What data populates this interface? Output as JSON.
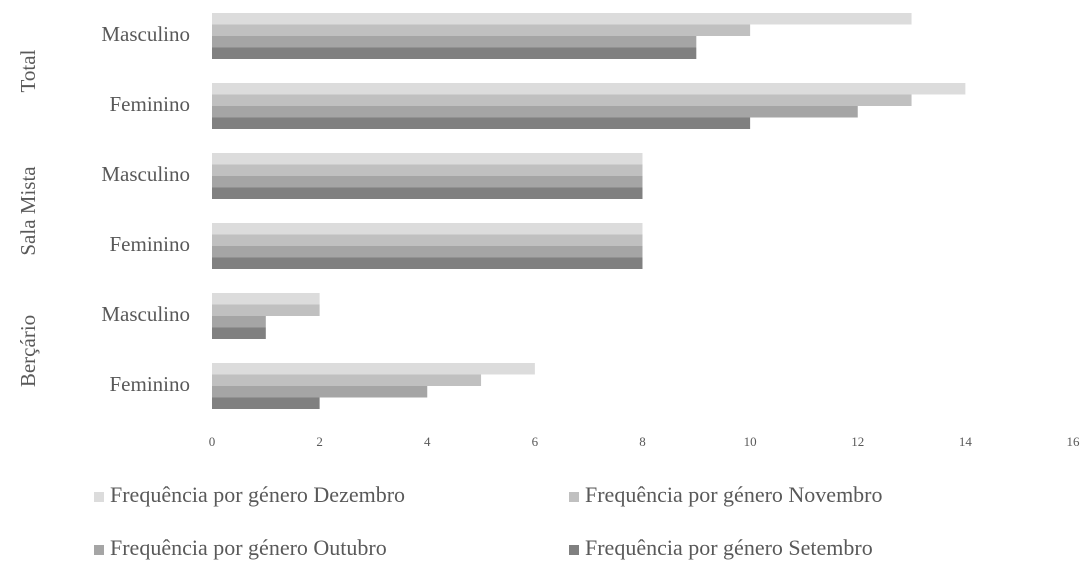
{
  "chart_data": {
    "type": "bar",
    "orientation": "horizontal",
    "groups": [
      {
        "label": "Total",
        "categories": [
          "Masculino",
          "Feminino"
        ]
      },
      {
        "label": "Sala Mista",
        "categories": [
          "Masculino",
          "Feminino"
        ]
      },
      {
        "label": "Berçário",
        "categories": [
          "Masculino",
          "Feminino"
        ]
      }
    ],
    "series": [
      {
        "name": "Frequência por género Dezembro",
        "color": "#dcdcdc",
        "values": [
          13,
          14,
          8,
          8,
          2,
          6
        ]
      },
      {
        "name": "Frequência por género Novembro",
        "color": "#c0c0c0",
        "values": [
          10,
          13,
          8,
          8,
          2,
          5
        ]
      },
      {
        "name": "Frequência por género Outubro",
        "color": "#a5a5a5",
        "values": [
          9,
          12,
          8,
          8,
          1,
          4
        ]
      },
      {
        "name": "Frequência por género Setembro",
        "color": "#808080",
        "values": [
          9,
          10,
          8,
          8,
          1,
          2
        ]
      }
    ],
    "xlim": [
      0,
      16
    ],
    "xticks": [
      0,
      2,
      4,
      6,
      8,
      10,
      12,
      14,
      16
    ],
    "grid": false,
    "legend": "bottom"
  }
}
